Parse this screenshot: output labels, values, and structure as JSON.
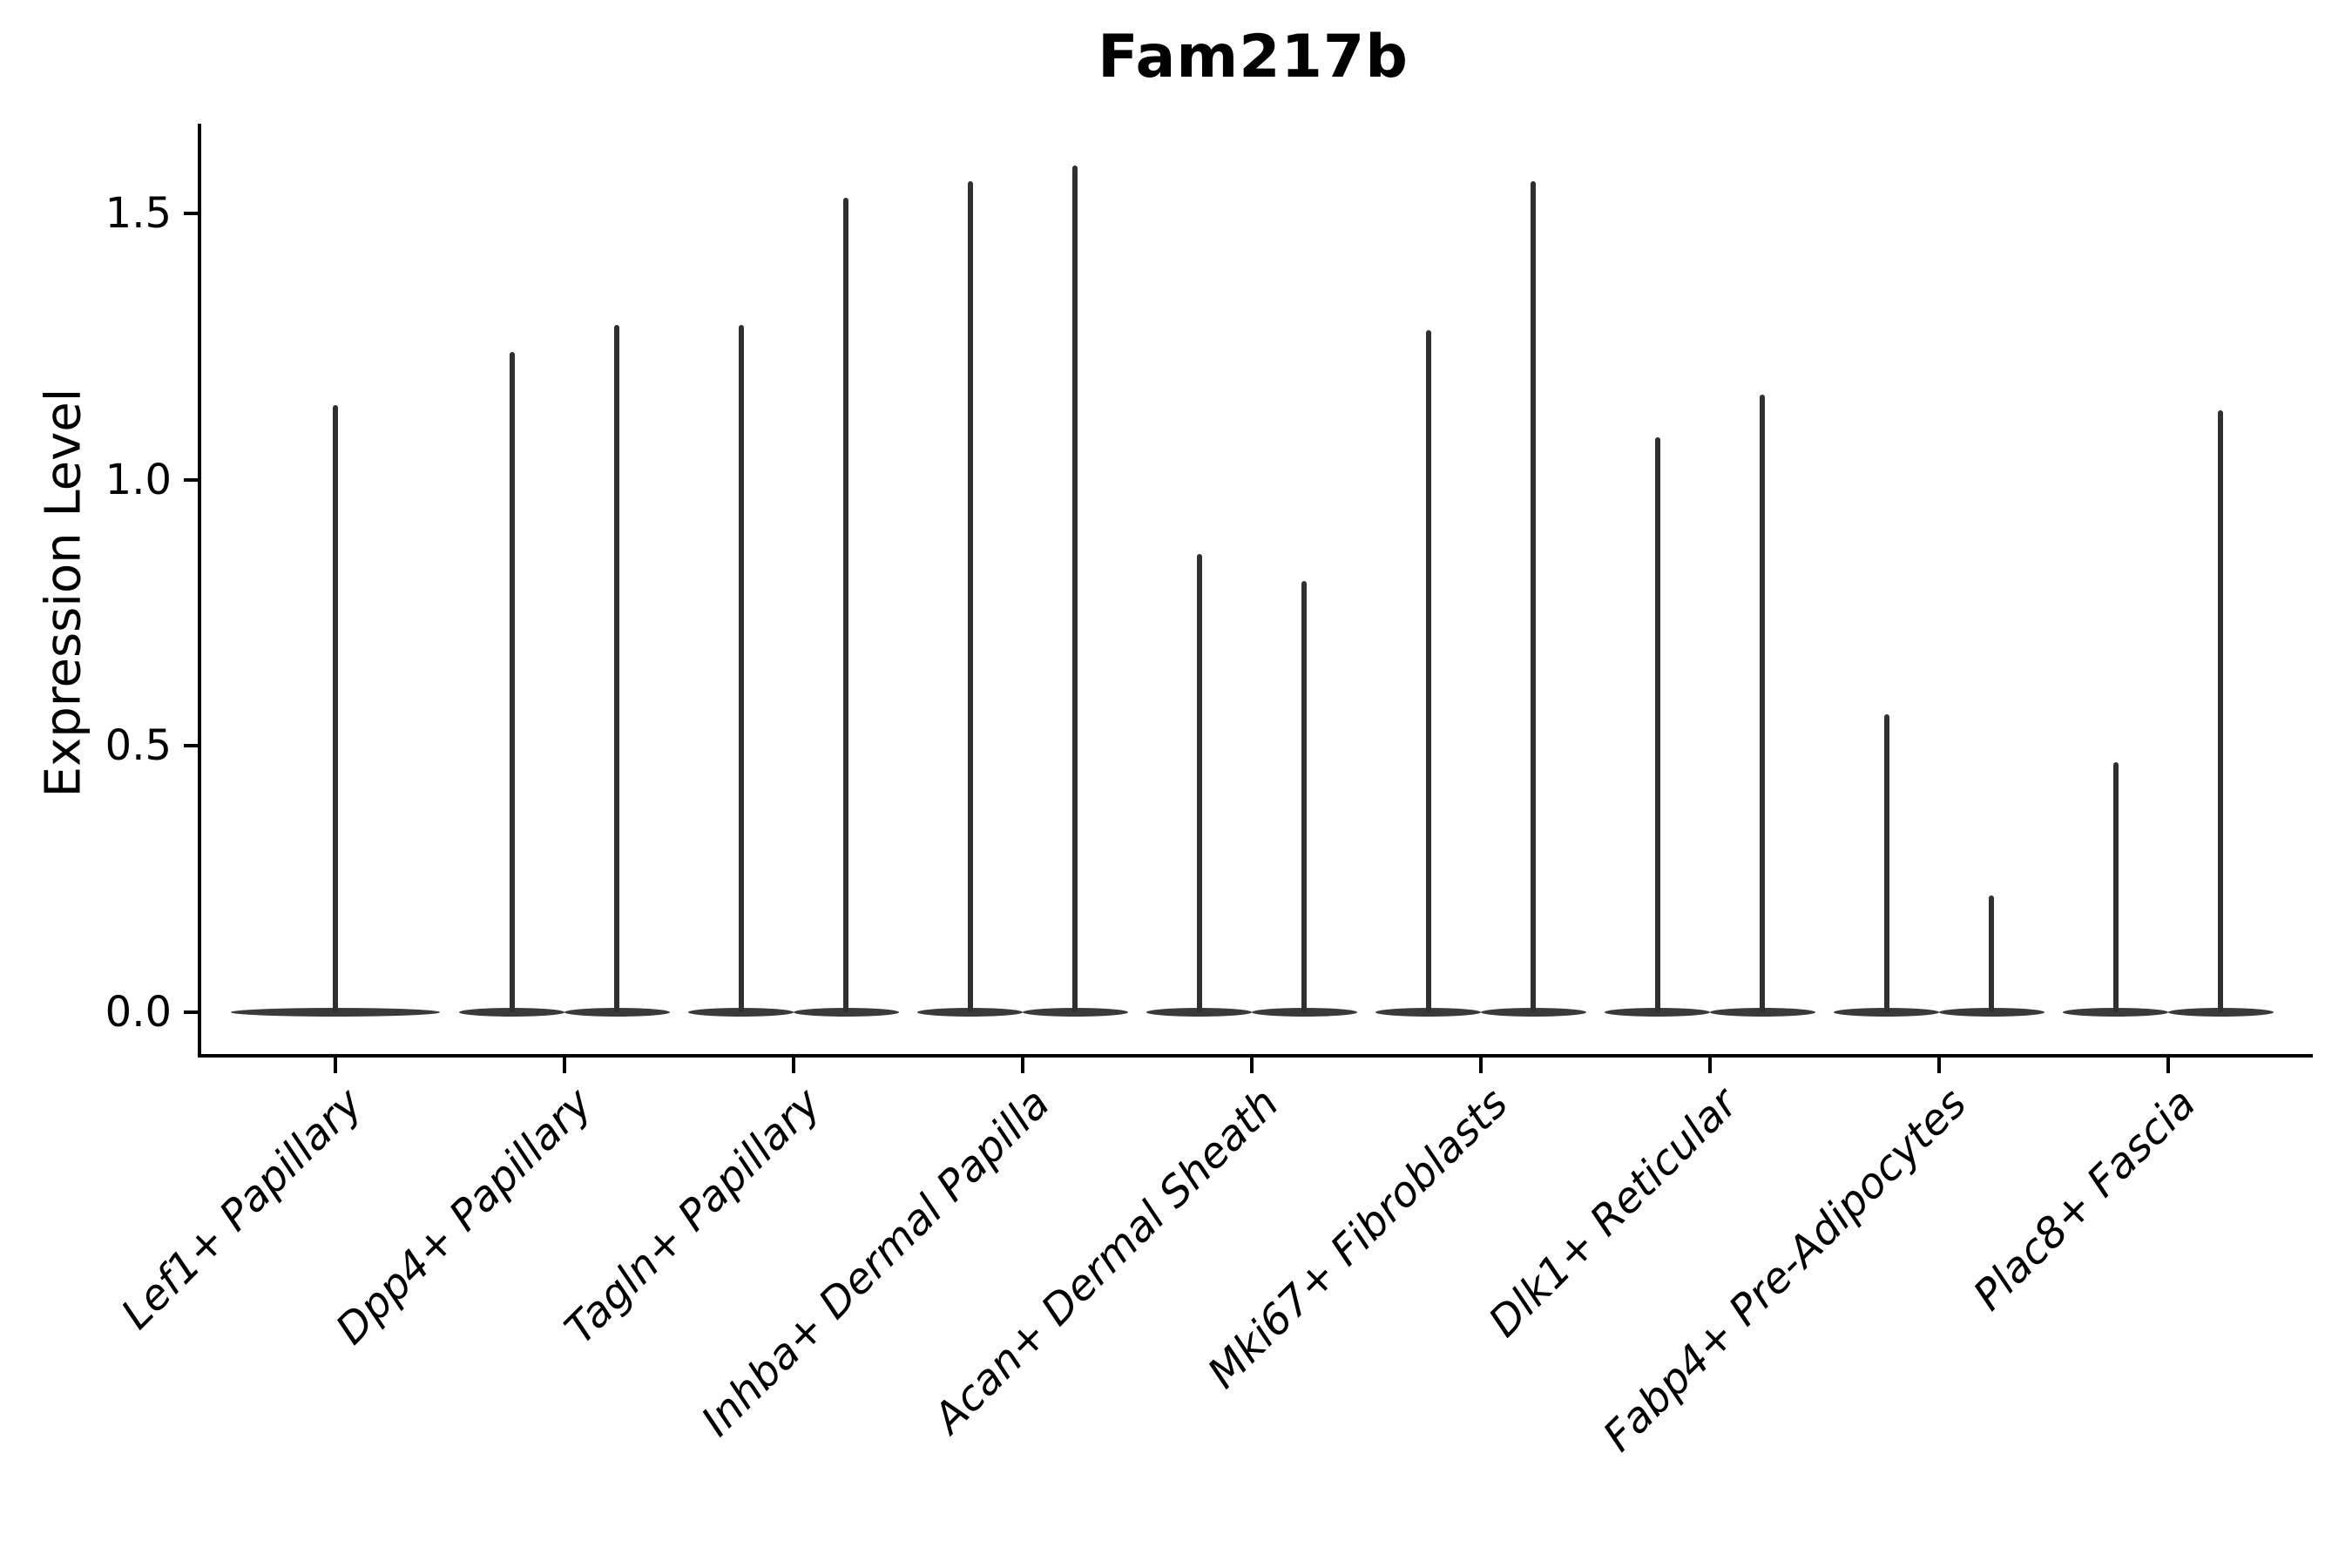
{
  "figure": {
    "title": "Fam217b",
    "ylabel": "Expression Level"
  },
  "chart_data": {
    "type": "violin",
    "title": "Fam217b",
    "xlabel": "",
    "ylabel": "Expression Level",
    "ylim": [
      -0.08,
      1.67
    ],
    "yticks": [
      0.0,
      0.5,
      1.0,
      1.5
    ],
    "ytick_labels": [
      "0.0",
      "0.5",
      "1.0",
      "1.5"
    ],
    "grid": false,
    "legend": null,
    "background": "#ffffff",
    "axis_color": "#000000",
    "violin_edge_color": "#3a3a3a",
    "spike_color": "#303030",
    "x_rotation_deg": 45,
    "categories": [
      "Lef1+ Papillary",
      "Dpp4+ Papillary",
      "Tagln+ Papillary",
      "Inhba+ Dermal Papilla",
      "Acan+ Dermal Sheath",
      "Mki67+ Fibroblasts",
      "Dlk1+ Reticular",
      "Fabp4+ Pre-Adipocytes",
      "Plac8+ Fascia"
    ],
    "series": [
      {
        "category": "Lef1+ Papillary",
        "violins": [
          {
            "group": 1,
            "dodge": 0.0,
            "rel_width": 0.91,
            "max_expression": 1.14
          }
        ]
      },
      {
        "category": "Dpp4+ Papillary",
        "violins": [
          {
            "group": 1,
            "dodge": -0.23,
            "rel_width": 0.46,
            "max_expression": 1.24
          },
          {
            "group": 2,
            "dodge": 0.23,
            "rel_width": 0.46,
            "max_expression": 1.29
          }
        ]
      },
      {
        "category": "Tagln+ Papillary",
        "violins": [
          {
            "group": 1,
            "dodge": -0.23,
            "rel_width": 0.46,
            "max_expression": 1.29
          },
          {
            "group": 2,
            "dodge": 0.23,
            "rel_width": 0.46,
            "max_expression": 1.53
          }
        ]
      },
      {
        "category": "Inhba+ Dermal Papilla",
        "violins": [
          {
            "group": 1,
            "dodge": -0.23,
            "rel_width": 0.46,
            "max_expression": 1.56
          },
          {
            "group": 2,
            "dodge": 0.23,
            "rel_width": 0.46,
            "max_expression": 1.59
          }
        ]
      },
      {
        "category": "Acan+ Dermal Sheath",
        "violins": [
          {
            "group": 1,
            "dodge": -0.23,
            "rel_width": 0.46,
            "max_expression": 0.86
          },
          {
            "group": 2,
            "dodge": 0.23,
            "rel_width": 0.46,
            "max_expression": 0.81
          }
        ]
      },
      {
        "category": "Mki67+ Fibroblasts",
        "violins": [
          {
            "group": 1,
            "dodge": -0.23,
            "rel_width": 0.46,
            "max_expression": 1.28
          },
          {
            "group": 2,
            "dodge": 0.23,
            "rel_width": 0.46,
            "max_expression": 1.56
          }
        ]
      },
      {
        "category": "Dlk1+ Reticular",
        "violins": [
          {
            "group": 1,
            "dodge": -0.23,
            "rel_width": 0.46,
            "max_expression": 1.08
          },
          {
            "group": 2,
            "dodge": 0.23,
            "rel_width": 0.46,
            "max_expression": 1.16
          }
        ]
      },
      {
        "category": "Fabp4+ Pre-Adipocytes",
        "violins": [
          {
            "group": 1,
            "dodge": -0.23,
            "rel_width": 0.46,
            "max_expression": 0.56
          },
          {
            "group": 2,
            "dodge": 0.23,
            "rel_width": 0.46,
            "max_expression": 0.22
          }
        ]
      },
      {
        "category": "Plac8+ Fascia",
        "violins": [
          {
            "group": 1,
            "dodge": -0.23,
            "rel_width": 0.46,
            "max_expression": 0.47
          },
          {
            "group": 2,
            "dodge": 0.23,
            "rel_width": 0.46,
            "max_expression": 1.13
          }
        ]
      }
    ]
  }
}
